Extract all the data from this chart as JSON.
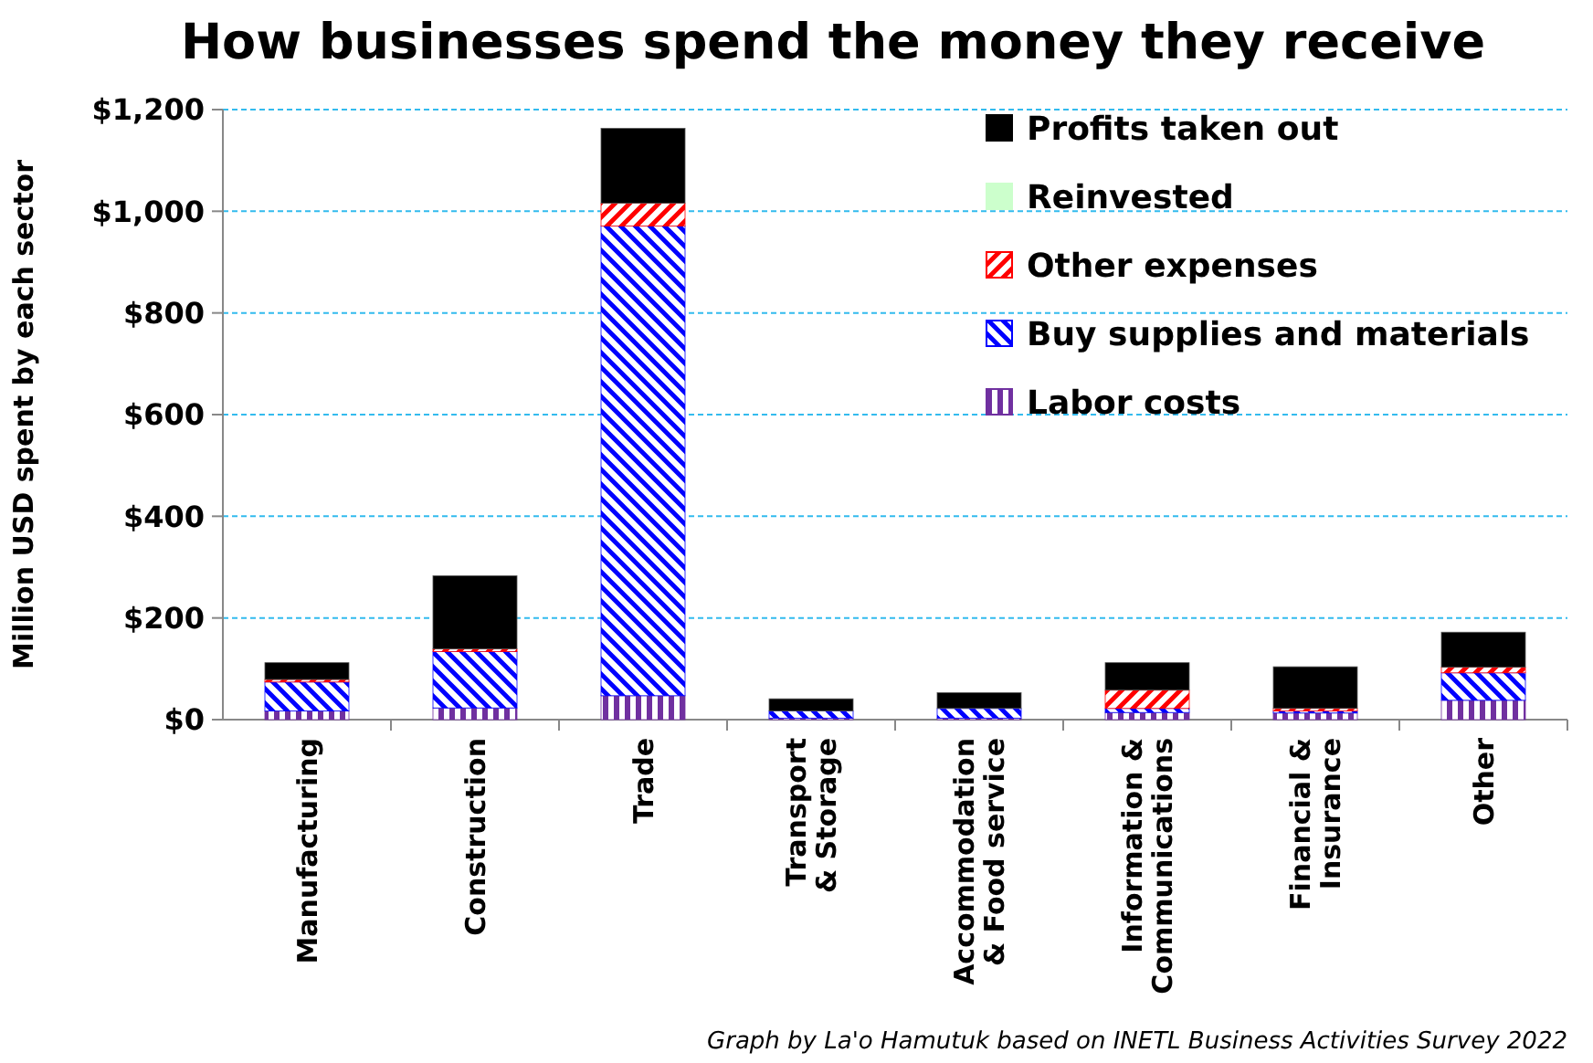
{
  "chart_data": {
    "type": "bar",
    "title": "How businesses spend the money they receive",
    "ylabel": "Million USD spent by each sector",
    "categories": [
      "Manufacturing",
      "Construction",
      "Trade",
      "Transport\n& Storage",
      "Accommodation\n& Food service",
      "Information &\nCommunications",
      "Financial &\nInsurance",
      "Other"
    ],
    "stacked": true,
    "series": [
      {
        "name": "Labor costs",
        "color": "#7030a0",
        "values": [
          17,
          23,
          47,
          3,
          3,
          14,
          13,
          38
        ]
      },
      {
        "name": "Buy supplies and materials",
        "color": "#0000ff",
        "values": [
          57,
          111,
          924,
          14,
          19,
          8,
          4,
          54
        ]
      },
      {
        "name": "Other expenses",
        "color": "#ff0000",
        "values": [
          5,
          5,
          45,
          0,
          0,
          36,
          5,
          11
        ]
      },
      {
        "name": "Reinvested",
        "color": "#ccffcc",
        "values": [
          null,
          null,
          null,
          null,
          null,
          null,
          null,
          null
        ]
      },
      {
        "name": "Profits taken out",
        "color": "#000000",
        "values": [
          33,
          144,
          147,
          24,
          31,
          54,
          82,
          69
        ]
      }
    ],
    "ylim": [
      0,
      1200
    ],
    "yticks": [
      {
        "value": 0,
        "label": "$0"
      },
      {
        "value": 200,
        "label": "$200"
      },
      {
        "value": 400,
        "label": "$400"
      },
      {
        "value": 600,
        "label": "$600"
      },
      {
        "value": 800,
        "label": "$800"
      },
      {
        "value": 1000,
        "label": "$1,000"
      },
      {
        "value": 1200,
        "label": "$1,200"
      }
    ],
    "grid": "y",
    "legend": "top right",
    "annotations": [
      "Graph by La'o Hamutuk based on INETL Business Activities Survey 2022"
    ]
  }
}
